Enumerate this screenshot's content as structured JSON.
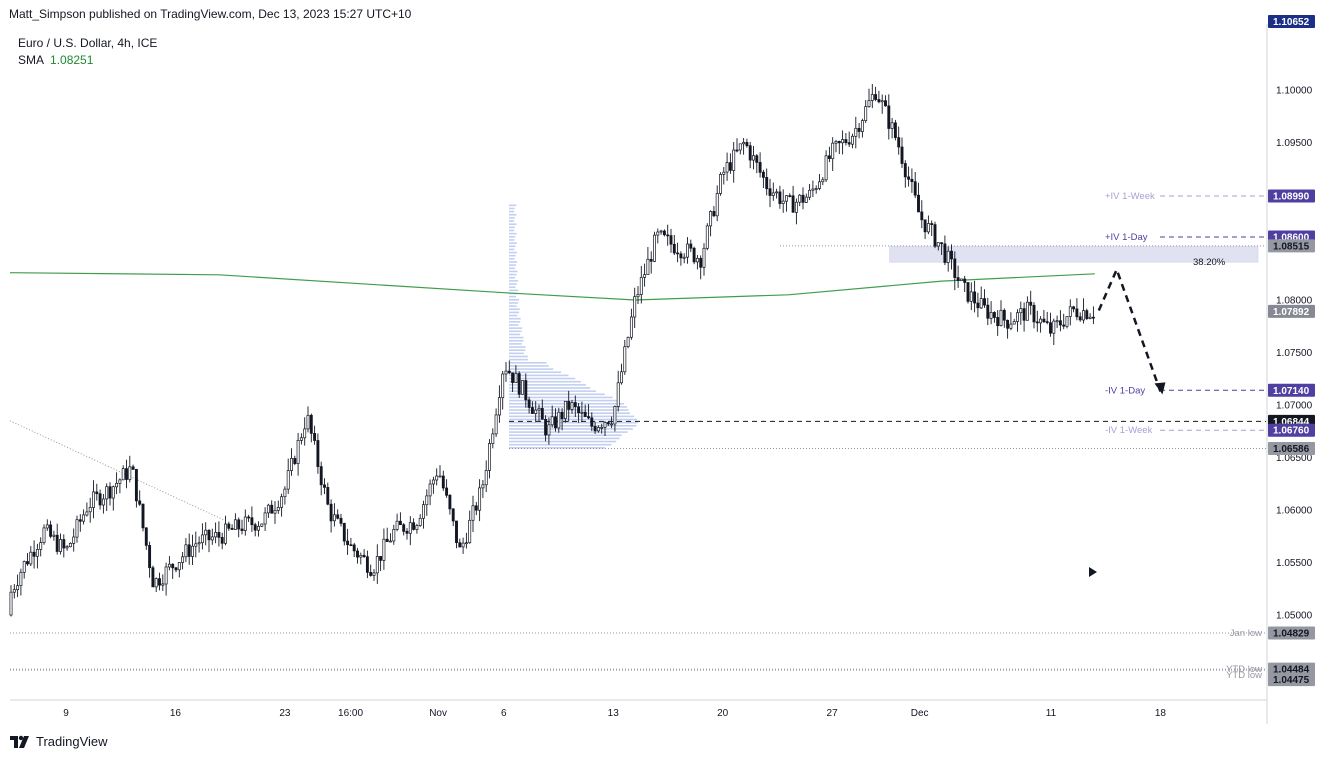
{
  "header": {
    "publisher": "Matt_Simpson published on TradingView.com, Dec 13, 2023 15:27 UTC+10"
  },
  "legend": {
    "symbol": "Euro / U.S. Dollar, 4h, ICE",
    "sma_label": "SMA",
    "sma_value": "1.08251"
  },
  "footer": {
    "brand": "TradingView"
  },
  "colors": {
    "candle": "#131722",
    "sma": "#3f9e4d",
    "iv_day": "#4f3fa0",
    "iv_week": "#a89fd8",
    "volume_profile": "#90a8e6",
    "resistance_zone": "#c8cce8",
    "badge_last": "#868993",
    "badge_current": "#131722",
    "badge_top": "#1a2f85"
  },
  "chart_data": {
    "type": "candlestick",
    "symbol": "Euro / U.S. Dollar",
    "timeframe": "4h",
    "exchange": "ICE",
    "ylim": [
      1.044,
      1.1065
    ],
    "y_ticks": [
      "1.10000",
      "1.09500",
      "1.09000",
      "1.08500",
      "1.08000",
      "1.07500",
      "1.07000",
      "1.06500",
      "1.06000",
      "1.05500",
      "1.05000"
    ],
    "x_ticks": [
      {
        "label": "9",
        "date": "2023-10-09"
      },
      {
        "label": "16",
        "date": "2023-10-16"
      },
      {
        "label": "23",
        "date": "2023-10-23"
      },
      {
        "label": "16:00",
        "date": "2023-10-26"
      },
      {
        "label": "Nov",
        "date": "2023-11-01"
      },
      {
        "label": "6",
        "date": "2023-11-06"
      },
      {
        "label": "13",
        "date": "2023-11-13"
      },
      {
        "label": "20",
        "date": "2023-11-20"
      },
      {
        "label": "27",
        "date": "2023-11-27"
      },
      {
        "label": "Dec",
        "date": "2023-12-01"
      },
      {
        "label": "11",
        "date": "2023-12-11"
      },
      {
        "label": "18",
        "date": "2023-12-18"
      }
    ],
    "close_path": [
      [
        "2023-10-04",
        1.05
      ],
      [
        "2023-10-05",
        1.0545
      ],
      [
        "2023-10-06",
        1.058
      ],
      [
        "2023-10-09",
        1.056
      ],
      [
        "2023-10-10",
        1.0605
      ],
      [
        "2023-10-11",
        1.062
      ],
      [
        "2023-10-12",
        1.064
      ],
      [
        "2023-10-13",
        1.053
      ],
      [
        "2023-10-16",
        1.055
      ],
      [
        "2023-10-17",
        1.057
      ],
      [
        "2023-10-18",
        1.0575
      ],
      [
        "2023-10-19",
        1.0585
      ],
      [
        "2023-10-20",
        1.059
      ],
      [
        "2023-10-23",
        1.062
      ],
      [
        "2023-10-24",
        1.069
      ],
      [
        "2023-10-25",
        1.06
      ],
      [
        "2023-10-26",
        1.0565
      ],
      [
        "2023-10-27",
        1.0545
      ],
      [
        "2023-10-30",
        1.058
      ],
      [
        "2023-10-31",
        1.059
      ],
      [
        "2023-11-01",
        1.064
      ],
      [
        "2023-11-02",
        1.056
      ],
      [
        "2023-11-03",
        1.062
      ],
      [
        "2023-11-06",
        1.074
      ],
      [
        "2023-11-07",
        1.071
      ],
      [
        "2023-11-08",
        1.0675
      ],
      [
        "2023-11-09",
        1.07
      ],
      [
        "2023-11-10",
        1.068
      ],
      [
        "2023-11-13",
        1.069
      ],
      [
        "2023-11-14",
        1.08
      ],
      [
        "2023-11-15",
        1.086
      ],
      [
        "2023-11-16",
        1.085
      ],
      [
        "2023-11-17",
        1.084
      ],
      [
        "2023-11-20",
        1.092
      ],
      [
        "2023-11-21",
        1.095
      ],
      [
        "2023-11-22",
        1.091
      ],
      [
        "2023-11-23",
        1.089
      ],
      [
        "2023-11-24",
        1.09
      ],
      [
        "2023-11-27",
        1.094
      ],
      [
        "2023-11-28",
        1.096
      ],
      [
        "2023-11-29",
        1.1
      ],
      [
        "2023-11-30",
        1.095
      ],
      [
        "2023-12-01",
        1.088
      ],
      [
        "2023-12-04",
        1.085
      ],
      [
        "2023-12-05",
        1.081
      ],
      [
        "2023-12-06",
        1.079
      ],
      [
        "2023-12-07",
        1.078
      ],
      [
        "2023-12-08",
        1.079
      ],
      [
        "2023-12-11",
        1.077
      ],
      [
        "2023-12-12",
        1.079
      ],
      [
        "2023-12-13",
        1.0789
      ]
    ],
    "sma": {
      "label": "SMA",
      "value": 1.08251,
      "path": [
        [
          "2023-10-04",
          1.0826
        ],
        [
          "2023-10-18",
          1.0824
        ],
        [
          "2023-11-06",
          1.0807
        ],
        [
          "2023-11-14",
          1.08
        ],
        [
          "2023-11-23",
          1.0805
        ],
        [
          "2023-12-04",
          1.0818
        ],
        [
          "2023-12-13",
          1.0825
        ]
      ]
    },
    "downtrend_line": [
      [
        "2023-10-04",
        1.0685
      ],
      [
        "2023-10-18",
        1.059
      ]
    ],
    "volume_profile_range": [
      1.0659,
      1.089
    ],
    "resistance_zone": {
      "label": "38.20%",
      "from": 1.0836,
      "to": 1.0851,
      "start": "2023-12-01",
      "end": "2023-12-22"
    },
    "levels": [
      {
        "label": "+IV 1-Week",
        "value": 1.0899,
        "badge": "1.08990",
        "style": "iv-week"
      },
      {
        "label": "+IV 1-Day",
        "value": 1.086,
        "badge": "1.08600",
        "style": "iv-day"
      },
      {
        "label": "",
        "value": 1.08515,
        "badge": "1.08515",
        "style": "dotted"
      },
      {
        "label": "-IV 1-Day",
        "value": 1.0714,
        "badge": "1.07140",
        "style": "iv-day"
      },
      {
        "label": "",
        "value": 1.06844,
        "badge": "1.06844",
        "style": "current"
      },
      {
        "label": "-IV 1-Week",
        "value": 1.0676,
        "badge": "1.06760",
        "style": "iv-week"
      },
      {
        "label": "",
        "value": 1.06586,
        "badge": "1.06586",
        "style": "dotted"
      },
      {
        "label": "Jan low",
        "value": 1.04829,
        "badge": "1.04829",
        "style": "dotted"
      },
      {
        "label": "YTD low",
        "value": 1.04484,
        "badge": "1.04484",
        "style": "dotted"
      },
      {
        "label": "YTD low",
        "value": 1.04475,
        "badge": "1.04475",
        "style": "dotted"
      }
    ],
    "last_price": {
      "value": 1.07892,
      "badge": "1.07892"
    },
    "top_badge": {
      "value": 1.10652,
      "badge": "1.10652"
    },
    "projection": [
      [
        "2023-12-13",
        1.079
      ],
      [
        "2023-12-14",
        1.0829
      ],
      [
        "2023-12-18",
        1.0713
      ]
    ]
  }
}
